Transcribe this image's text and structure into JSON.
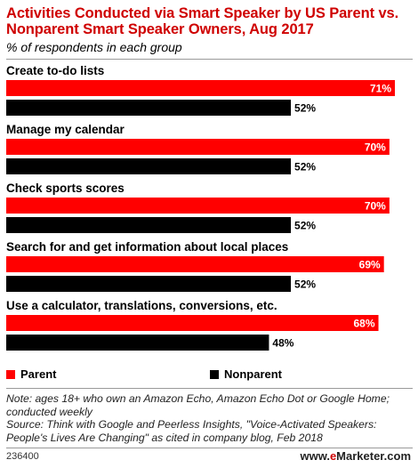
{
  "title": "Activities Conducted via Smart Speaker by US Parent vs. Nonparent Smart Speaker Owners, Aug 2017",
  "subtitle": "% of respondents in each group",
  "colors": {
    "parent": "#ff0000",
    "nonparent": "#000000",
    "title": "#cf0000"
  },
  "chart_data": {
    "type": "bar",
    "orientation": "horizontal",
    "categories": [
      "Create to-do lists",
      "Manage my calendar",
      "Check sports scores",
      "Search for and get information about local places",
      "Use a calculator, translations, conversions, etc."
    ],
    "series": [
      {
        "name": "Parent",
        "values": [
          71,
          70,
          70,
          69,
          68
        ],
        "labels": [
          "71%",
          "70%",
          "70%",
          "69%",
          "68%"
        ]
      },
      {
        "name": "Nonparent",
        "values": [
          52,
          52,
          52,
          52,
          48
        ],
        "labels": [
          "52%",
          "52%",
          "52%",
          "52%",
          "48%"
        ]
      }
    ],
    "xlim": [
      0,
      71
    ],
    "legend": "bottom-left",
    "grid": false
  },
  "legend": {
    "parent": "Parent",
    "nonparent": "Nonparent"
  },
  "note": "Note: ages 18+ who own an Amazon Echo, Amazon Echo Dot or Google Home; conducted weekly",
  "source": "Source: Think with Google and Peerless Insights, \"Voice-Activated Speakers: People's Lives Are Changing\" as cited in company blog, Feb 2018",
  "footer_id": "236400",
  "logo": {
    "prefix": "www.",
    "brand_e": "e",
    "brand_rest": "Marketer",
    "suffix": ".com"
  }
}
